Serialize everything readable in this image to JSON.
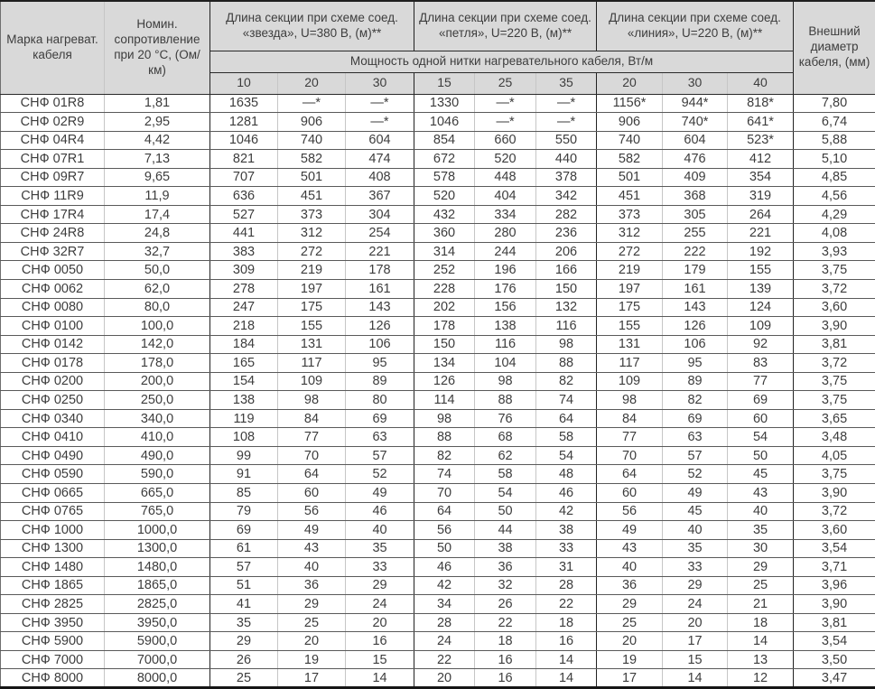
{
  "table": {
    "title_semantic": "Таблица длин секций нагревательного кабеля СНФ",
    "col_headers": {
      "mark": "Марка нагреват. кабеля",
      "resistance": "Номин. сопротивление при 20 °C, (Ом/км)",
      "group_star": "Длина секции при схеме соед. «звезда», U=380 В, (м)**",
      "group_loop": "Длина секции при схеме соед. «петля», U=220 В, (м)**",
      "group_line": "Длина секции при схеме соед. «линия», U=220 В, (м)**",
      "diameter": "Внешний диаметр кабеля, (мм)",
      "power_band": "Мощность одной нитки нагревательного кабеля, Вт/м",
      "power_values": [
        "10",
        "20",
        "30",
        "15",
        "25",
        "35",
        "20",
        "30",
        "40"
      ]
    },
    "rows": [
      [
        "СНФ 01R8",
        "1,81",
        "1635",
        "—*",
        "—*",
        "1330",
        "—*",
        "—*",
        "1156*",
        "944*",
        "818*",
        "7,80"
      ],
      [
        "СНФ 02R9",
        "2,95",
        "1281",
        "906",
        "—*",
        "1046",
        "—*",
        "—*",
        "906",
        "740*",
        "641*",
        "6,74"
      ],
      [
        "СНФ 04R4",
        "4,42",
        "1046",
        "740",
        "604",
        "854",
        "660",
        "550",
        "740",
        "604",
        "523*",
        "5,88"
      ],
      [
        "СНФ 07R1",
        "7,13",
        "821",
        "582",
        "474",
        "672",
        "520",
        "440",
        "582",
        "476",
        "412",
        "5,10"
      ],
      [
        "СНФ 09R7",
        "9,65",
        "707",
        "501",
        "408",
        "578",
        "448",
        "378",
        "501",
        "409",
        "354",
        "4,85"
      ],
      [
        "СНФ 11R9",
        "11,9",
        "636",
        "451",
        "367",
        "520",
        "404",
        "342",
        "451",
        "368",
        "319",
        "4,56"
      ],
      [
        "СНФ 17R4",
        "17,4",
        "527",
        "373",
        "304",
        "432",
        "334",
        "282",
        "373",
        "305",
        "264",
        "4,29"
      ],
      [
        "СНФ 24R8",
        "24,8",
        "441",
        "312",
        "254",
        "360",
        "280",
        "236",
        "312",
        "255",
        "221",
        "4,08"
      ],
      [
        "СНФ 32R7",
        "32,7",
        "383",
        "272",
        "221",
        "314",
        "244",
        "206",
        "272",
        "222",
        "192",
        "3,93"
      ],
      [
        "СНФ 0050",
        "50,0",
        "309",
        "219",
        "178",
        "252",
        "196",
        "166",
        "219",
        "179",
        "155",
        "3,75"
      ],
      [
        "СНФ 0062",
        "62,0",
        "278",
        "197",
        "161",
        "228",
        "176",
        "150",
        "197",
        "161",
        "139",
        "3,72"
      ],
      [
        "СНФ 0080",
        "80,0",
        "247",
        "175",
        "143",
        "202",
        "156",
        "132",
        "175",
        "143",
        "124",
        "3,60"
      ],
      [
        "СНФ 0100",
        "100,0",
        "218",
        "155",
        "126",
        "178",
        "138",
        "116",
        "155",
        "126",
        "109",
        "3,90"
      ],
      [
        "СНФ 0142",
        "142,0",
        "184",
        "131",
        "106",
        "150",
        "116",
        "98",
        "131",
        "106",
        "92",
        "3,81"
      ],
      [
        "СНФ 0178",
        "178,0",
        "165",
        "117",
        "95",
        "134",
        "104",
        "88",
        "117",
        "95",
        "83",
        "3,72"
      ],
      [
        "СНФ 0200",
        "200,0",
        "154",
        "109",
        "89",
        "126",
        "98",
        "82",
        "109",
        "89",
        "77",
        "3,75"
      ],
      [
        "СНФ 0250",
        "250,0",
        "138",
        "98",
        "80",
        "114",
        "88",
        "74",
        "98",
        "82",
        "69",
        "3,75"
      ],
      [
        "СНФ 0340",
        "340,0",
        "119",
        "84",
        "69",
        "98",
        "76",
        "64",
        "84",
        "69",
        "60",
        "3,65"
      ],
      [
        "СНФ 0410",
        "410,0",
        "108",
        "77",
        "63",
        "88",
        "68",
        "58",
        "77",
        "63",
        "54",
        "3,48"
      ],
      [
        "СНФ 0490",
        "490,0",
        "99",
        "70",
        "57",
        "82",
        "62",
        "54",
        "70",
        "57",
        "50",
        "4,05"
      ],
      [
        "СНФ 0590",
        "590,0",
        "91",
        "64",
        "52",
        "74",
        "58",
        "48",
        "64",
        "52",
        "45",
        "3,75"
      ],
      [
        "СНФ 0665",
        "665,0",
        "85",
        "60",
        "49",
        "70",
        "54",
        "46",
        "60",
        "49",
        "43",
        "3,90"
      ],
      [
        "СНФ 0765",
        "765,0",
        "79",
        "56",
        "46",
        "64",
        "50",
        "42",
        "56",
        "45",
        "40",
        "3,72"
      ],
      [
        "СНФ 1000",
        "1000,0",
        "69",
        "49",
        "40",
        "56",
        "44",
        "38",
        "49",
        "40",
        "35",
        "3,60"
      ],
      [
        "СНФ 1300",
        "1300,0",
        "61",
        "43",
        "35",
        "50",
        "38",
        "33",
        "43",
        "35",
        "30",
        "3,54"
      ],
      [
        "СНФ 1480",
        "1480,0",
        "57",
        "40",
        "33",
        "46",
        "36",
        "31",
        "40",
        "33",
        "29",
        "3,71"
      ],
      [
        "СНФ 1865",
        "1865,0",
        "51",
        "36",
        "29",
        "42",
        "32",
        "28",
        "36",
        "29",
        "25",
        "3,96"
      ],
      [
        "СНФ 2825",
        "2825,0",
        "41",
        "29",
        "24",
        "34",
        "26",
        "22",
        "29",
        "24",
        "21",
        "3,90"
      ],
      [
        "СНФ 3950",
        "3950,0",
        "35",
        "25",
        "20",
        "28",
        "22",
        "18",
        "25",
        "20",
        "18",
        "3,81"
      ],
      [
        "СНФ 5900",
        "5900,0",
        "29",
        "20",
        "16",
        "24",
        "18",
        "16",
        "20",
        "17",
        "14",
        "3,54"
      ],
      [
        "СНФ 7000",
        "7000,0",
        "26",
        "19",
        "15",
        "22",
        "16",
        "14",
        "19",
        "15",
        "13",
        "3,50"
      ],
      [
        "СНФ 8000",
        "8000,0",
        "25",
        "17",
        "14",
        "20",
        "16",
        "14",
        "17",
        "14",
        "12",
        "3,47"
      ]
    ],
    "colors": {
      "header_bg": "#d9d9d9",
      "border_dark": "#222222",
      "border_light": "#c6c6c6",
      "text": "#3d3d3d"
    }
  }
}
